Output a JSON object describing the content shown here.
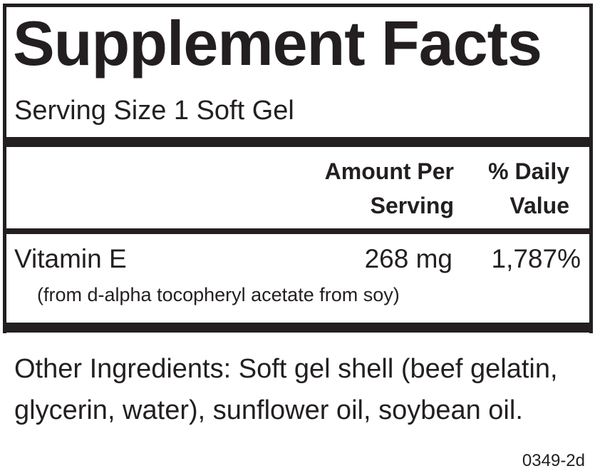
{
  "title": "Supplement Facts",
  "serving_size": "Serving Size 1 Soft Gel",
  "columns": {
    "amount_line1": "Amount Per",
    "amount_line2": "Serving",
    "dv_line1": "% Daily",
    "dv_line2": "Value"
  },
  "nutrients": [
    {
      "name": "Vitamin E",
      "amount": "268 mg",
      "daily_value": "1,787%",
      "source": "(from d-alpha tocopheryl acetate from soy)"
    }
  ],
  "other_ingredients": "Other Ingredients: Soft gel shell (beef gelatin, glycerin, water), sunflower oil, soybean oil.",
  "code": "0349-2d"
}
